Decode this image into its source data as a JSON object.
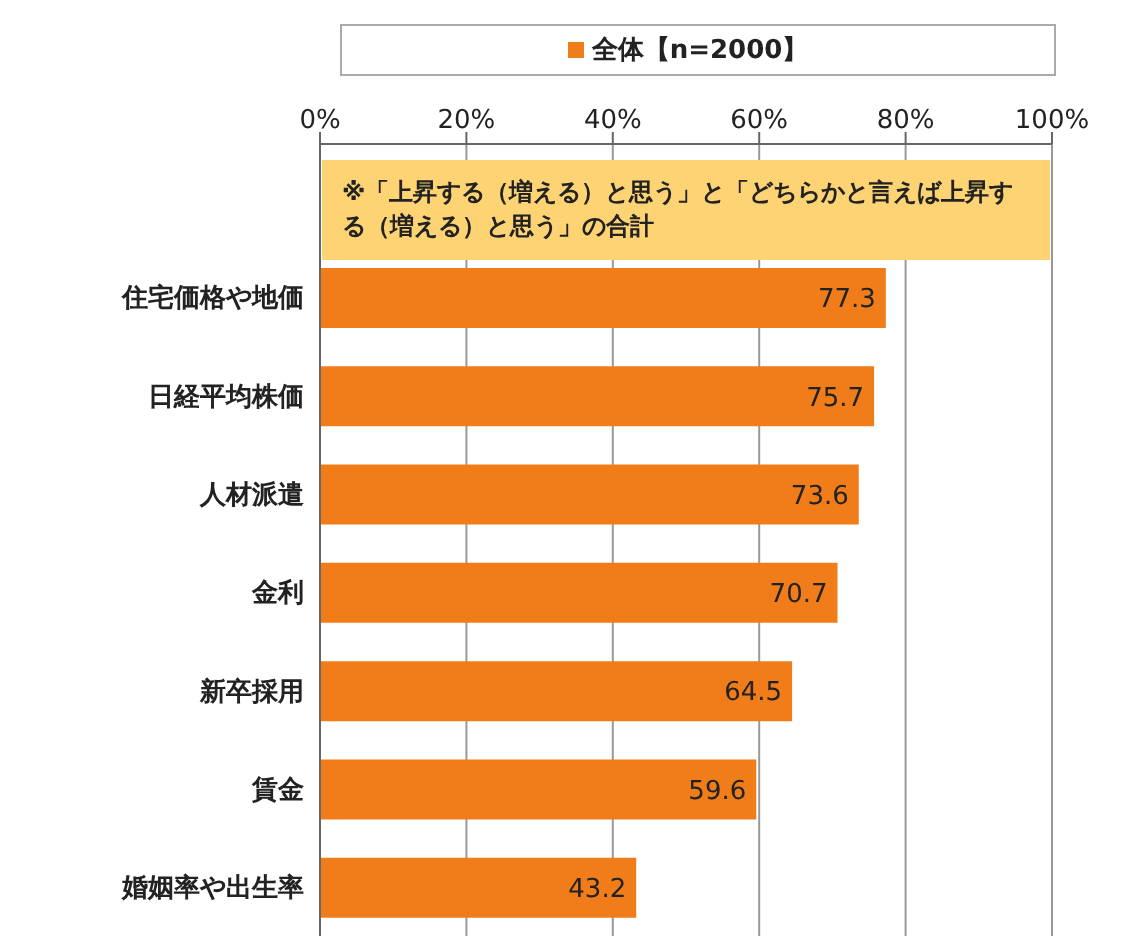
{
  "chart_data": {
    "type": "bar",
    "orientation": "horizontal",
    "categories": [
      "住宅価格や地価",
      "日経平均株価",
      "人材派遣",
      "金利",
      "新卒採用",
      "賃金",
      "婚姻率や出生率"
    ],
    "series": [
      {
        "name": "全体【n=2000】",
        "color": "#f07d1a",
        "values": [
          77.3,
          75.7,
          73.6,
          70.7,
          64.5,
          59.6,
          43.2
        ]
      }
    ],
    "xlim": [
      0,
      100
    ],
    "xticks": [
      {
        "value": 0,
        "label": "0%"
      },
      {
        "value": 20,
        "label": "20%"
      },
      {
        "value": 40,
        "label": "40%"
      },
      {
        "value": 60,
        "label": "60%"
      },
      {
        "value": 80,
        "label": "80%"
      },
      {
        "value": 100,
        "label": "100%"
      }
    ],
    "grid": "x",
    "legend": "top",
    "data_labels": true,
    "annotations": [
      "※「上昇する（増える）と思う」と「どちらかと言えば上昇する（増える）と思う」の合計"
    ]
  }
}
